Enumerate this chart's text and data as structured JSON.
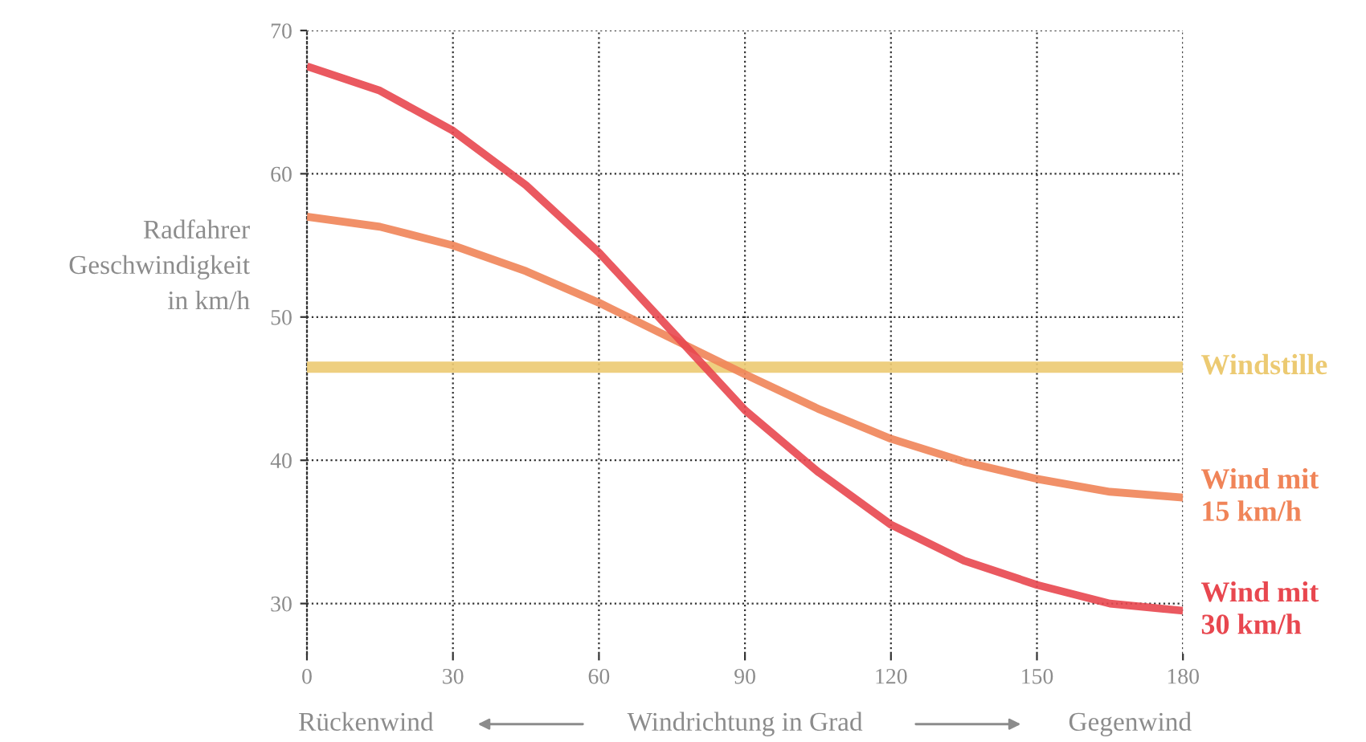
{
  "chart_data": {
    "type": "line",
    "ylabel": "Radfahrer\nGeschwindigkeit\nin km/h",
    "xlabel": "Windrichtung in Grad",
    "annotations": [
      "Rückenwind",
      "Gegenwind"
    ],
    "xlim": [
      0,
      180
    ],
    "ylim": [
      26.5,
      70
    ],
    "xticks": [
      0,
      30,
      60,
      90,
      120,
      150,
      180
    ],
    "yticks": [
      30,
      40,
      50,
      60,
      70
    ],
    "grid": true,
    "legend": false,
    "line_style": "solid",
    "marker": "none",
    "series": [
      {
        "name": "Windstille",
        "color": "#ecca72",
        "x": [
          0,
          180
        ],
        "values": [
          46.5,
          46.5
        ]
      },
      {
        "name": "Wind mit\n15 km/h",
        "color": "#f08458",
        "x": [
          0,
          15,
          30,
          45,
          60,
          75,
          90,
          105,
          120,
          135,
          150,
          165,
          180
        ],
        "values": [
          57,
          56.3,
          55,
          53.2,
          51,
          48.5,
          46,
          43.6,
          41.5,
          39.9,
          38.7,
          37.8,
          37.4
        ]
      },
      {
        "name": "Wind mit\n30 km/h",
        "color": "#e8474f",
        "x": [
          0,
          15,
          30,
          45,
          60,
          75,
          90,
          105,
          120,
          135,
          150,
          165,
          180
        ],
        "values": [
          67.5,
          65.8,
          63,
          59.2,
          54.5,
          49,
          43.5,
          39.2,
          35.5,
          33,
          31.3,
          30,
          29.5
        ]
      }
    ]
  }
}
